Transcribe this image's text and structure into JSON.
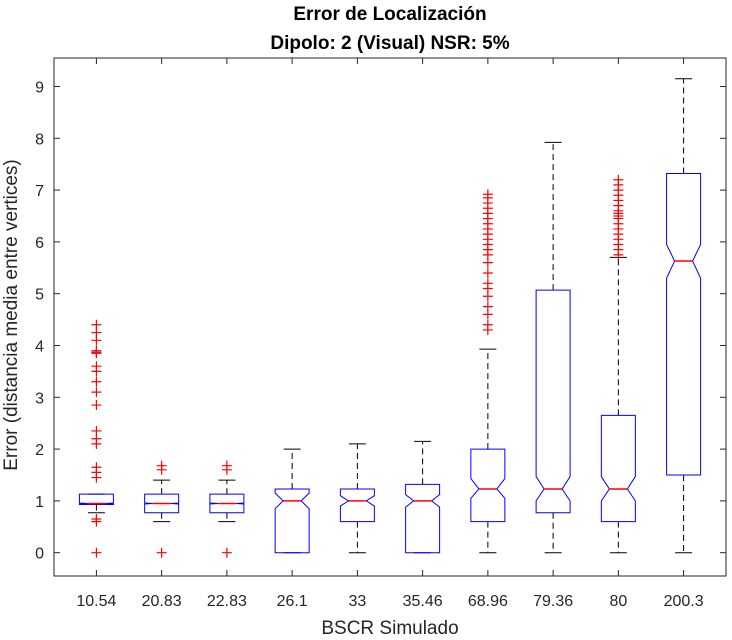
{
  "chart_data": {
    "type": "boxplot",
    "title": "Error de Localización",
    "subtitle": "Dipolo: 2 (Visual) NSR: 5%",
    "xlabel": "BSCR Simulado",
    "ylabel": "Error (distancia media entre vertices)",
    "ylim": [
      -0.45,
      9.55
    ],
    "yticks": [
      0,
      1,
      2,
      3,
      4,
      5,
      6,
      7,
      8,
      9
    ],
    "notched": true,
    "grid": false,
    "colors": {
      "box": "#0000ff",
      "median": "#ff0000",
      "whisker": "#000000",
      "outlier": "#ff0000",
      "axis": "#262626"
    },
    "categories": [
      "10.54",
      "20.83",
      "22.83",
      "26.1",
      "33",
      "35.46",
      "68.96",
      "79.36",
      "80",
      "200.3"
    ],
    "boxes": [
      {
        "category": "10.54",
        "whisker_low": 0.77,
        "q1": 0.93,
        "median": 0.95,
        "q3": 1.13,
        "whisker_high": 1.13,
        "notch_low": 0.94,
        "notch_high": 0.96,
        "outliers": [
          0,
          0.6,
          0.65,
          1.45,
          1.55,
          1.65,
          2.1,
          2.2,
          2.35,
          2.85,
          3.1,
          3.3,
          3.5,
          3.6,
          3.85,
          3.87,
          3.9,
          4.1,
          4.25,
          4.4
        ]
      },
      {
        "category": "20.83",
        "whisker_low": 0.6,
        "q1": 0.77,
        "median": 0.95,
        "q3": 1.13,
        "whisker_high": 1.4,
        "notch_low": 0.94,
        "notch_high": 0.96,
        "outliers": [
          0,
          1.6,
          1.68
        ]
      },
      {
        "category": "22.83",
        "whisker_low": 0.6,
        "q1": 0.77,
        "median": 0.95,
        "q3": 1.13,
        "whisker_high": 1.4,
        "notch_low": 0.94,
        "notch_high": 0.96,
        "outliers": [
          0,
          1.6,
          1.68
        ]
      },
      {
        "category": "26.1",
        "whisker_low": 0,
        "q1": 0,
        "median": 1.0,
        "q3": 1.23,
        "whisker_high": 2.0,
        "notch_low": 0.85,
        "notch_high": 1.15,
        "outliers": []
      },
      {
        "category": "33",
        "whisker_low": 0,
        "q1": 0.6,
        "median": 1.0,
        "q3": 1.23,
        "whisker_high": 2.1,
        "notch_low": 0.9,
        "notch_high": 1.1,
        "outliers": []
      },
      {
        "category": "35.46",
        "whisker_low": 0,
        "q1": 0,
        "median": 1.0,
        "q3": 1.32,
        "whisker_high": 2.15,
        "notch_low": 0.88,
        "notch_high": 1.12,
        "outliers": []
      },
      {
        "category": "68.96",
        "whisker_low": 0,
        "q1": 0.6,
        "median": 1.23,
        "q3": 2.0,
        "whisker_high": 3.93,
        "notch_low": 1.05,
        "notch_high": 1.43,
        "outliers": [
          4.3,
          4.4,
          4.6,
          4.75,
          4.95,
          5.1,
          5.2,
          5.4,
          5.6,
          5.75,
          5.85,
          5.95,
          6.05,
          6.15,
          6.25,
          6.35,
          6.45,
          6.55,
          6.65,
          6.75,
          6.85,
          6.92
        ]
      },
      {
        "category": "79.36",
        "whisker_low": 0,
        "q1": 0.77,
        "median": 1.23,
        "q3": 5.07,
        "whisker_high": 7.92,
        "notch_low": 1.0,
        "notch_high": 1.47,
        "outliers": []
      },
      {
        "category": "80",
        "whisker_low": 0,
        "q1": 0.6,
        "median": 1.23,
        "q3": 2.65,
        "whisker_high": 5.7,
        "notch_low": 1.0,
        "notch_high": 1.47,
        "outliers": [
          5.75,
          5.85,
          5.95,
          6.05,
          6.15,
          6.25,
          6.35,
          6.45,
          6.5,
          6.55,
          6.6,
          6.7,
          6.8,
          6.9,
          7.0,
          7.1,
          7.2
        ]
      },
      {
        "category": "200.3",
        "whisker_low": 0,
        "q1": 1.5,
        "median": 5.63,
        "q3": 7.32,
        "whisker_high": 9.15,
        "notch_low": 5.3,
        "notch_high": 5.95,
        "outliers": []
      }
    ]
  }
}
